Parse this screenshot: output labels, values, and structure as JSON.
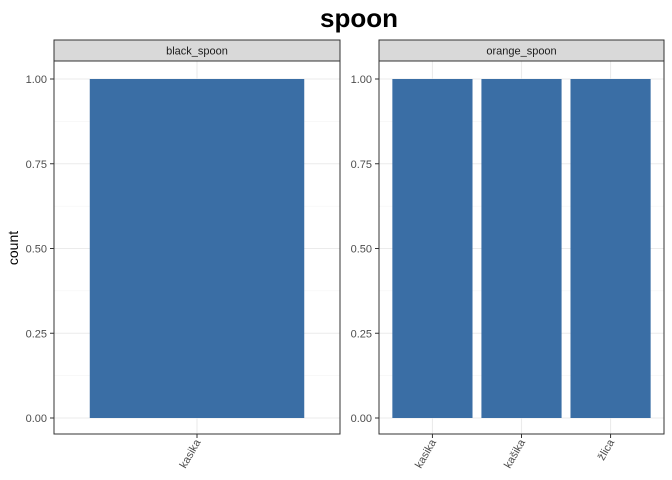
{
  "chart_data": {
    "type": "bar",
    "title": "spoon",
    "xlabel": "",
    "ylabel": "count",
    "ylim": [
      0,
      1
    ],
    "yticks": [
      "0.00",
      "0.25",
      "0.50",
      "0.75",
      "1.00"
    ],
    "grid": true,
    "bar_color": "#3A6EA5",
    "facets": [
      {
        "name": "black_spoon",
        "categories": [
          "kasika"
        ],
        "values": [
          1
        ]
      },
      {
        "name": "orange_spoon",
        "categories": [
          "kasika",
          "kašika",
          "žlica"
        ],
        "values": [
          1,
          1,
          1
        ]
      }
    ]
  }
}
